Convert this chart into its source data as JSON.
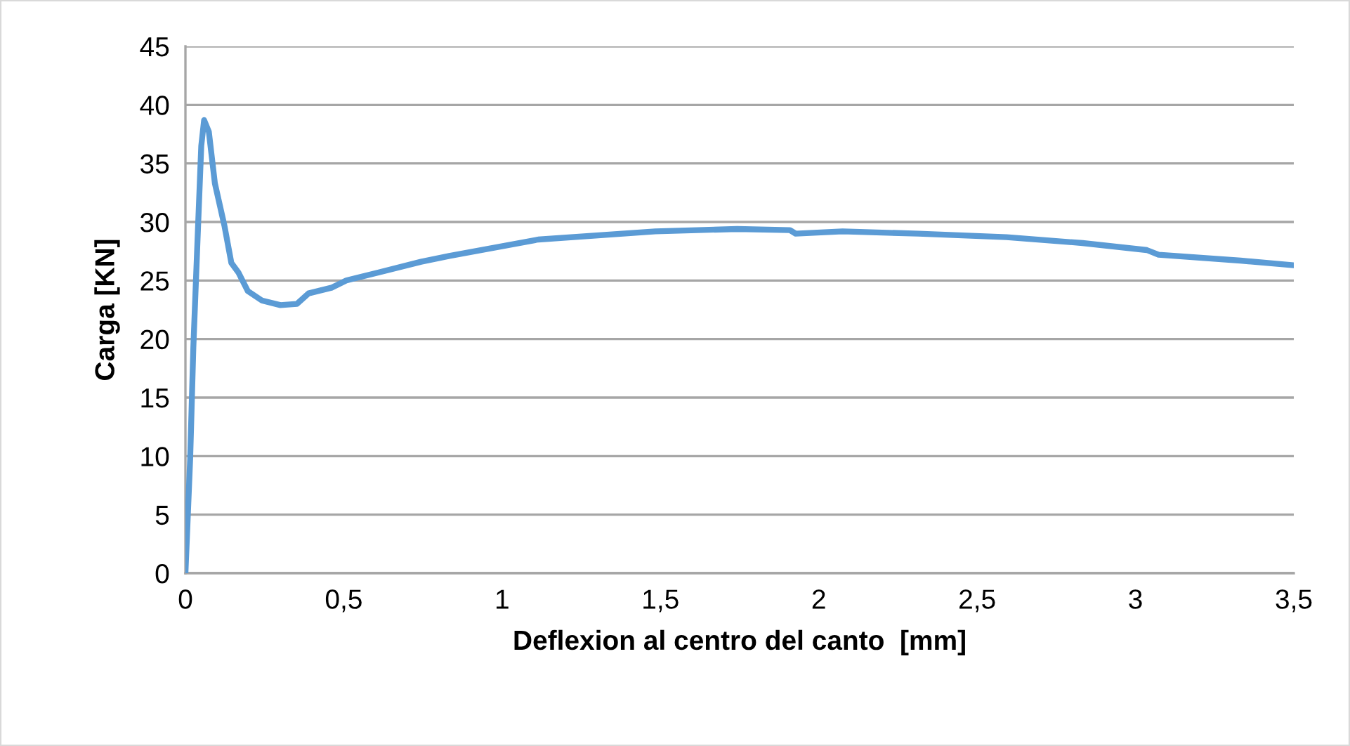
{
  "chart_data": {
    "type": "line",
    "xlabel": "Deflexion al centro del canto  [mm]",
    "ylabel": "Carga [KN]",
    "series": [
      {
        "color": "#5b9bd5",
        "x": [
          0,
          0.015,
          0.025,
          0.04,
          0.05,
          0.059,
          0.074,
          0.093,
          0.123,
          0.145,
          0.167,
          0.197,
          0.241,
          0.3,
          0.352,
          0.389,
          0.463,
          0.508,
          0.611,
          0.744,
          0.833,
          1.114,
          1.484,
          1.742,
          1.909,
          1.927,
          2.075,
          2.315,
          2.593,
          2.833,
          3.036,
          3.073,
          3.332,
          3.5
        ],
        "values": [
          0,
          9.8,
          19.3,
          29.7,
          36.5,
          38.7,
          37.7,
          33.3,
          29.7,
          26.5,
          25.7,
          24.1,
          23.3,
          22.9,
          23.0,
          23.9,
          24.4,
          25.0,
          25.7,
          26.6,
          27.1,
          28.5,
          29.2,
          29.4,
          29.3,
          29.0,
          29.2,
          29.0,
          28.7,
          28.2,
          27.6,
          27.2,
          26.7,
          26.3
        ]
      }
    ],
    "xlim": [
      0,
      3.5
    ],
    "xticks": [
      0,
      {
        "value": 0.5,
        "label": "0,5"
      },
      1,
      {
        "value": 1.5,
        "label": "1,5"
      },
      2,
      {
        "value": 2.5,
        "label": "2,5"
      },
      3,
      {
        "value": 3.5,
        "label": "3,5"
      }
    ],
    "ylim": [
      0,
      45
    ],
    "yticks": [
      0,
      5,
      10,
      15,
      20,
      25,
      30,
      35,
      40,
      45
    ],
    "grid": "y",
    "legend": false,
    "marker": "none",
    "line_style": "solid"
  }
}
